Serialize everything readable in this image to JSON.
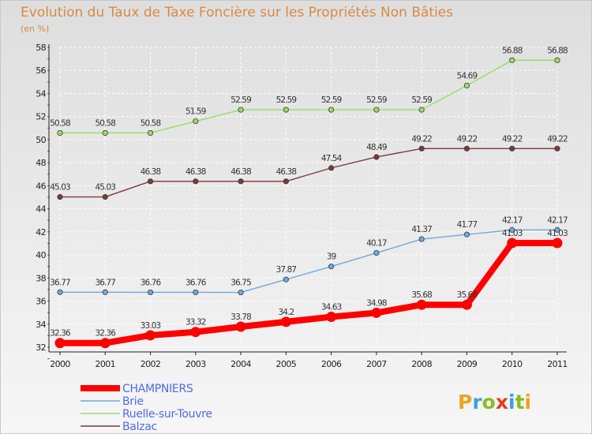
{
  "chart_data": {
    "type": "line",
    "title": "Evolution du Taux de Taxe Foncière sur les Propriétés Non Bâties",
    "subtitle": "(en %)",
    "x": [
      "2000",
      "2001",
      "2002",
      "2003",
      "2004",
      "2005",
      "2006",
      "2007",
      "2008",
      "2009",
      "2010",
      "2011"
    ],
    "ylim": [
      32,
      58
    ],
    "yticks": [
      "32",
      "34",
      "36",
      "38",
      "40",
      "42",
      "44",
      "46",
      "48",
      "50",
      "52",
      "54",
      "56",
      "58"
    ],
    "grid": true,
    "legend_position": "bottom-left",
    "series": [
      {
        "name": "CHAMPNIERS",
        "color": "#ff0000",
        "values": [
          32.36,
          32.36,
          33.03,
          33.32,
          33.78,
          34.2,
          34.63,
          34.98,
          35.68,
          35.68,
          41.03,
          41.03
        ],
        "labels": [
          "32.36",
          "32.36",
          "33.03",
          "33.32",
          "33.78",
          "34.2",
          "34.63",
          "34.98",
          "35.68",
          "35.68",
          "41.03",
          "41.03"
        ]
      },
      {
        "name": "Brie",
        "color": "#6fa8dc",
        "values": [
          36.77,
          36.77,
          36.76,
          36.76,
          36.75,
          37.87,
          39,
          40.17,
          41.37,
          41.77,
          42.17,
          42.17
        ],
        "labels": [
          "36.77",
          "36.77",
          "36.76",
          "36.76",
          "36.75",
          "37.87",
          "39",
          "40.17",
          "41.37",
          "41.77",
          "42.17",
          "42.17"
        ]
      },
      {
        "name": "Ruelle-sur-Touvre",
        "color": "#99dd66",
        "values": [
          50.58,
          50.58,
          50.58,
          51.59,
          52.59,
          52.59,
          52.59,
          52.59,
          52.59,
          54.69,
          56.88,
          56.88
        ],
        "labels": [
          "50.58",
          "50.58",
          "50.58",
          "51.59",
          "52.59",
          "52.59",
          "52.59",
          "52.59",
          "52.59",
          "54.69",
          "56.88",
          "56.88"
        ]
      },
      {
        "name": "Balzac",
        "color": "#7a3b3b",
        "values": [
          45.03,
          45.03,
          46.38,
          46.38,
          46.38,
          46.38,
          47.54,
          48.49,
          49.22,
          49.22,
          49.22,
          49.22
        ],
        "labels": [
          "45.03",
          "45.03",
          "46.38",
          "46.38",
          "46.38",
          "46.38",
          "47.54",
          "48.49",
          "49.22",
          "49.22",
          "49.22",
          "49.22"
        ]
      }
    ]
  },
  "logo": {
    "text": "Proxiti"
  }
}
